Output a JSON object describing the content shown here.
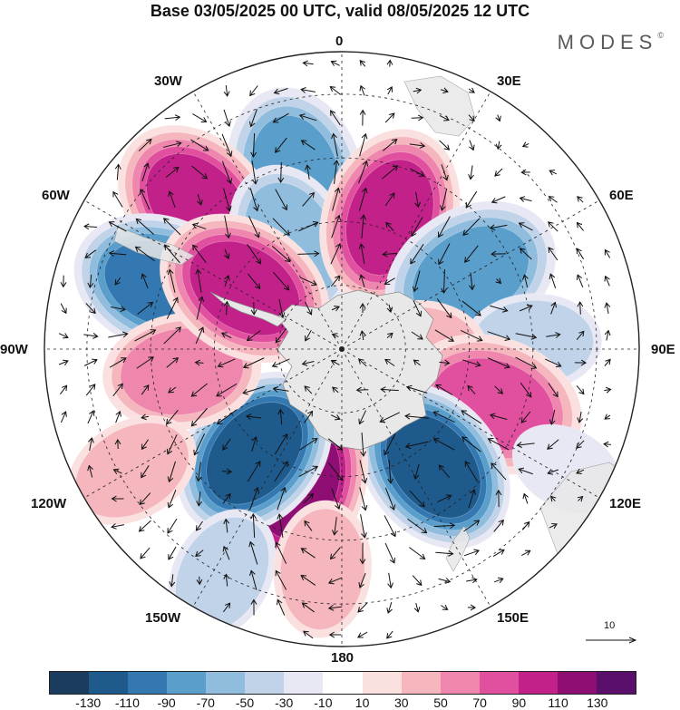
{
  "title": "Base 03/05/2025 00 UTC, valid 08/05/2025 12 UTC",
  "brand": "MODES",
  "brand_mark": "©",
  "longitude_labels": {
    "lon_0": "0",
    "lon_30e": "30E",
    "lon_60e": "60E",
    "lon_90e": "90E",
    "lon_120e": "120E",
    "lon_150e": "150E",
    "lon_180": "180",
    "lon_150w": "150W",
    "lon_120w": "120W",
    "lon_90w": "90W",
    "lon_60w": "60W",
    "lon_30w": "30W"
  },
  "wind_reference": {
    "value": "10",
    "icon": "arrow-right-icon"
  },
  "colorbar": {
    "colors": [
      "#1b3c5e",
      "#1e5a8c",
      "#3378b1",
      "#5a9ecb",
      "#90bddd",
      "#c0d3e9",
      "#e7e8f3",
      "#ffffff",
      "#fbe0e0",
      "#f5b6bd",
      "#ee86ad",
      "#e0509f",
      "#c3218a",
      "#8e0e74",
      "#5a0f6c"
    ],
    "labels": [
      "-130",
      "-110",
      "-90",
      "-70",
      "-50",
      "-30",
      "-10",
      "10",
      "30",
      "50",
      "70",
      "90",
      "110",
      "130"
    ]
  },
  "anomaly_centers": [
    {
      "lon": 345,
      "lat": -48,
      "value": -85
    },
    {
      "lon": 315,
      "lat": -42,
      "value": 105
    },
    {
      "lon": 290,
      "lat": -45,
      "value": -90
    },
    {
      "lon": 335,
      "lat": -62,
      "value": -60
    },
    {
      "lon": 20,
      "lat": -57,
      "value": 95
    },
    {
      "lon": 60,
      "lat": -55,
      "value": -70
    },
    {
      "lon": 88,
      "lat": -45,
      "value": -40
    },
    {
      "lon": 90,
      "lat": -72,
      "value": 40
    },
    {
      "lon": 110,
      "lat": -52,
      "value": 85
    },
    {
      "lon": 142,
      "lat": -55,
      "value": -110
    },
    {
      "lon": 118,
      "lat": -30,
      "value": -20
    },
    {
      "lon": 198,
      "lat": -57,
      "value": 120
    },
    {
      "lon": 220,
      "lat": -58,
      "value": -110
    },
    {
      "lon": 262,
      "lat": -52,
      "value": 65
    },
    {
      "lon": 302,
      "lat": -63,
      "value": 95
    },
    {
      "lon": 240,
      "lat": -33,
      "value": 40
    },
    {
      "lon": 208,
      "lat": -30,
      "value": -40
    },
    {
      "lon": 185,
      "lat": -38,
      "value": 35
    }
  ]
}
